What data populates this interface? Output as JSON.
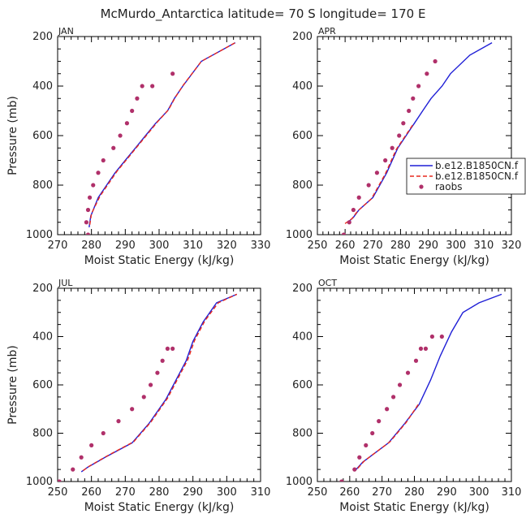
{
  "figure": {
    "title": "McMurdo_Antarctica  latitude= 70 S longitude= 170 E"
  },
  "legend": {
    "placement": "right of APR panel",
    "entries": [
      {
        "label": "b.e12.B1850CN.f",
        "style": "solid",
        "color": "#1f1fd6"
      },
      {
        "label": "b.e12.B1850CN.f",
        "style": "dashed",
        "color": "#e8281e"
      },
      {
        "label": "raobs",
        "style": "dots",
        "color": "#b0306a"
      }
    ]
  },
  "chart_data": [
    {
      "type": "line",
      "panel_label": "JAN",
      "xlabel": "Moist Static Energy (kJ/kg)",
      "ylabel": "Pressure (mb)",
      "xlim": [
        270,
        330
      ],
      "ylim": [
        1000,
        200
      ],
      "y_reversed": true,
      "xticks": [
        270,
        280,
        290,
        300,
        310,
        320,
        330
      ],
      "yticks": [
        200,
        400,
        600,
        800,
        1000
      ],
      "series": [
        {
          "color": "#1f1fd6",
          "style": "solid",
          "x": [
            279.3,
            279.8,
            282,
            284.5,
            287,
            290,
            293,
            296,
            299,
            302.5,
            304.5,
            307,
            312.5,
            322.5
          ],
          "y": [
            970,
            925,
            850,
            800,
            750,
            700,
            650,
            600,
            550,
            500,
            450,
            400,
            300,
            225
          ]
        },
        {
          "color": "#e8281e",
          "style": "dashed",
          "x": [
            279.5,
            280,
            282.5,
            285,
            287.5,
            290.5,
            293.5,
            296.5,
            299.5,
            302.8,
            304.8,
            307.2,
            312.5,
            322.5
          ],
          "y": [
            960,
            915,
            845,
            795,
            745,
            695,
            645,
            595,
            545,
            495,
            445,
            395,
            300,
            225
          ]
        },
        {
          "color": "#b0306a",
          "style": "dots",
          "x": [
            279,
            278.5,
            279,
            279.5,
            280.5,
            282,
            283.5,
            286.5,
            288.5,
            290.5,
            292,
            293.5,
            295,
            298,
            304
          ],
          "y": [
            1000,
            950,
            900,
            850,
            800,
            750,
            700,
            650,
            600,
            550,
            500,
            450,
            400,
            400,
            350
          ]
        }
      ]
    },
    {
      "type": "line",
      "panel_label": "APR",
      "xlabel": "Moist Static Energy (kJ/kg)",
      "ylabel": "",
      "xlim": [
        250,
        320
      ],
      "ylim": [
        1000,
        200
      ],
      "y_reversed": true,
      "xticks": [
        250,
        260,
        270,
        280,
        290,
        300,
        310,
        320
      ],
      "yticks": [
        200,
        400,
        600,
        800,
        1000
      ],
      "series": [
        {
          "color": "#1f1fd6",
          "style": "solid",
          "x": [
            261,
            263,
            265,
            270,
            275,
            279,
            282,
            285,
            288,
            291,
            295,
            298,
            305,
            313
          ],
          "y": [
            950,
            930,
            900,
            850,
            750,
            650,
            600,
            550,
            500,
            450,
            400,
            350,
            275,
            225
          ]
        },
        {
          "color": "#e8281e",
          "style": "dashed",
          "x": [
            260,
            262.5,
            264.5,
            269.5,
            274.5,
            278.5,
            281.5,
            284.5
          ],
          "y": [
            955,
            935,
            905,
            855,
            755,
            655,
            605,
            555
          ]
        },
        {
          "color": "#b0306a",
          "style": "dots",
          "x": [
            259.5,
            261.5,
            263,
            265,
            268.5,
            271.5,
            274.5,
            277,
            279.5,
            281,
            283,
            284.5,
            286.5,
            289.5,
            292.5
          ],
          "y": [
            1000,
            950,
            900,
            850,
            800,
            750,
            700,
            650,
            600,
            550,
            500,
            450,
            400,
            350,
            300
          ]
        }
      ]
    },
    {
      "type": "line",
      "panel_label": "JUL",
      "xlabel": "Moist Static Energy (kJ/kg)",
      "ylabel": "Pressure (mb)",
      "xlim": [
        250,
        310
      ],
      "ylim": [
        1000,
        200
      ],
      "y_reversed": true,
      "xticks": [
        250,
        260,
        270,
        280,
        290,
        300,
        310
      ],
      "yticks": [
        200,
        400,
        600,
        800,
        1000
      ],
      "series": [
        {
          "color": "#1f1fd6",
          "style": "solid",
          "x": [
            257,
            259,
            264,
            272,
            277,
            282,
            285,
            288,
            290,
            293,
            297,
            303
          ],
          "y": [
            960,
            940,
            900,
            840,
            760,
            660,
            580,
            500,
            420,
            340,
            260,
            225
          ]
        },
        {
          "color": "#e8281e",
          "style": "dashed",
          "x": [
            257.5,
            259.5,
            264.5,
            272.5,
            277.5,
            282.5,
            285.5,
            288.5,
            290.5,
            293.5,
            297.5,
            303
          ],
          "y": [
            955,
            935,
            895,
            835,
            755,
            655,
            575,
            495,
            415,
            335,
            260,
            225
          ]
        },
        {
          "color": "#b0306a",
          "style": "dots",
          "x": [
            250.5,
            254.5,
            257,
            260,
            263.5,
            268,
            272,
            275.5,
            277.5,
            279.5,
            281,
            282.5,
            284
          ],
          "y": [
            1000,
            950,
            900,
            850,
            800,
            750,
            700,
            650,
            600,
            550,
            500,
            450,
            450
          ]
        }
      ]
    },
    {
      "type": "line",
      "panel_label": "OCT",
      "xlabel": "Moist Static Energy (kJ/kg)",
      "ylabel": "",
      "xlim": [
        250,
        310
      ],
      "ylim": [
        1000,
        200
      ],
      "y_reversed": true,
      "xticks": [
        250,
        260,
        270,
        280,
        290,
        300,
        310
      ],
      "yticks": [
        200,
        400,
        600,
        800,
        1000
      ],
      "series": [
        {
          "color": "#1f1fd6",
          "style": "solid",
          "x": [
            262,
            264,
            272,
            277,
            281.5,
            285,
            288,
            291.5,
            295,
            300,
            307
          ],
          "y": [
            950,
            920,
            840,
            760,
            680,
            580,
            480,
            380,
            300,
            260,
            225
          ]
        },
        {
          "color": "#e8281e",
          "style": "dashed",
          "x": [
            262.5,
            264.5,
            272.5,
            277.5,
            281.5
          ],
          "y": [
            945,
            915,
            835,
            755,
            675
          ]
        },
        {
          "color": "#b0306a",
          "style": "dots",
          "x": [
            257.5,
            261.5,
            263,
            265,
            267,
            269,
            271.5,
            273.5,
            275.5,
            278,
            280.5,
            282,
            283.5,
            285.5,
            288.5
          ],
          "y": [
            1000,
            950,
            900,
            850,
            800,
            750,
            700,
            650,
            600,
            550,
            500,
            450,
            450,
            400,
            400
          ]
        }
      ]
    }
  ]
}
